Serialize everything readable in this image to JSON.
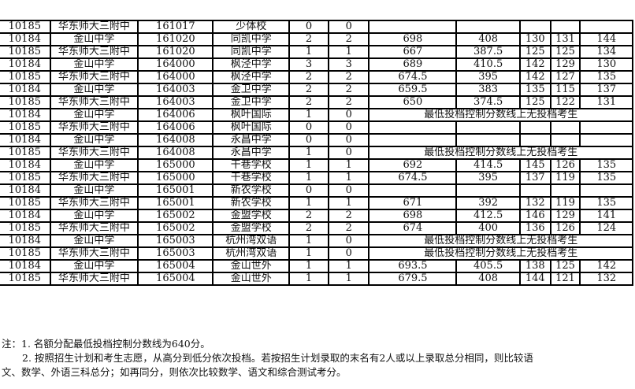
{
  "rows": [
    [
      "10185",
      "华东师大三附中",
      "161017",
      "少体校",
      "0",
      "0",
      "",
      "",
      "",
      "",
      ""
    ],
    [
      "10184",
      "金山中学",
      "161020",
      "同凯中学",
      "2",
      "2",
      "698",
      "408",
      "130",
      "131",
      "144"
    ],
    [
      "10185",
      "华东师大三附中",
      "161020",
      "同凯中学",
      "1",
      "1",
      "667",
      "387.5",
      "125",
      "125",
      "134"
    ],
    [
      "10184",
      "金山中学",
      "164000",
      "枫泾中学",
      "3",
      "3",
      "689",
      "410.5",
      "142",
      "129",
      "130"
    ],
    [
      "10185",
      "华东师大三附中",
      "164000",
      "枫泾中学",
      "2",
      "2",
      "674.5",
      "395",
      "142",
      "127",
      "135"
    ],
    [
      "10184",
      "金山中学",
      "164003",
      "金卫中学",
      "2",
      "2",
      "659.5",
      "383",
      "135",
      "115",
      "137"
    ],
    [
      "10185",
      "华东师大三附中",
      "164003",
      "金卫中学",
      "2",
      "2",
      "650",
      "374.5",
      "125",
      "122",
      "131"
    ],
    [
      "10184",
      "金山中学",
      "164006",
      "枫叶国际",
      "1",
      "0",
      "最低投档控制分数线上无投档考生"
    ],
    [
      "10185",
      "华东师大三附中",
      "164006",
      "枫叶国际",
      "0",
      "0",
      "",
      "",
      "",
      "",
      ""
    ],
    [
      "10184",
      "金山中学",
      "164008",
      "永昌中学",
      "0",
      "0",
      "",
      "",
      "",
      "",
      ""
    ],
    [
      "10185",
      "华东师大三附中",
      "164008",
      "永昌中学",
      "1",
      "0",
      "最低投档控制分数线上无投档考生"
    ],
    [
      "10184",
      "金山中学",
      "165000",
      "干巷学校",
      "1",
      "1",
      "692",
      "414.5",
      "145",
      "126",
      "135"
    ],
    [
      "10185",
      "华东师大三附中",
      "165000",
      "干巷学校",
      "1",
      "1",
      "674.5",
      "395",
      "137",
      "119",
      "135"
    ],
    [
      "10184",
      "金山中学",
      "165001",
      "新农学校",
      "0",
      "0",
      "",
      "",
      "",
      "",
      ""
    ],
    [
      "10185",
      "华东师大三附中",
      "165001",
      "新农学校",
      "1",
      "1",
      "671",
      "392",
      "132",
      "119",
      "135"
    ],
    [
      "10184",
      "金山中学",
      "165002",
      "金盟学校",
      "2",
      "2",
      "698",
      "412.5",
      "146",
      "129",
      "141"
    ],
    [
      "10185",
      "华东师大三附中",
      "165002",
      "金盟学校",
      "2",
      "2",
      "674",
      "400",
      "136",
      "126",
      "124"
    ],
    [
      "10184",
      "金山中学",
      "165003",
      "杭州湾双语",
      "1",
      "0",
      "最低投档控制分数线上无投档考生"
    ],
    [
      "10185",
      "华东师大三附中",
      "165003",
      "杭州湾双语",
      "1",
      "0",
      "最低投档控制分数线上无投档考生"
    ],
    [
      "10184",
      "金山中学",
      "165004",
      "金山世外",
      "1",
      "1",
      "693.5",
      "405.5",
      "138",
      "125",
      "142"
    ],
    [
      "10185",
      "华东师大三附中",
      "165004",
      "金山世外",
      "1",
      "1",
      "679.5",
      "408",
      "144",
      "121",
      "132"
    ]
  ],
  "notes": {
    "line1": "注：1. 名额分配最低投档控制分数线为640分。",
    "line2": "2. 按照招生计划和考生志愿，从高分到低分依次投档。若按招生计划录取的末名有2人或以上录取总分相同，则比较语",
    "line3": "文、数学、外语三科总分；如再同分，则依次比较数学、语文和综合测试考分。"
  }
}
